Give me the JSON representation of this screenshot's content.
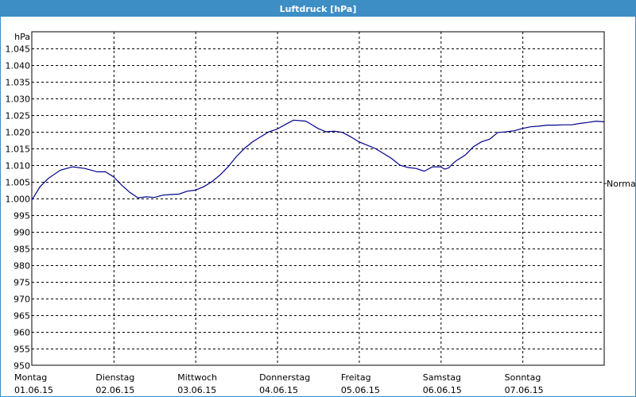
{
  "window": {
    "title": "Luftdruck [hPa]"
  },
  "chart_data": {
    "type": "line",
    "title": "Luftdruck [hPa]",
    "ylabel": "hPa",
    "xlabel": "",
    "ylim": [
      950,
      1050
    ],
    "xlim": [
      0,
      7
    ],
    "grid": true,
    "y_ticks": [
      950,
      955,
      960,
      965,
      970,
      975,
      980,
      985,
      990,
      995,
      1000,
      1005,
      1010,
      1015,
      1020,
      1025,
      1030,
      1035,
      1040,
      1045
    ],
    "y_tick_labels": [
      "950",
      "955",
      "960",
      "965",
      "970",
      "975",
      "980",
      "985",
      "990",
      "995",
      "1.000",
      "1.005",
      "1.010",
      "1.015",
      "1.020",
      "1.025",
      "1.030",
      "1.035",
      "1.040",
      "1.045"
    ],
    "categories": [
      {
        "day": "Montag",
        "date": "01.06.15"
      },
      {
        "day": "Dienstag",
        "date": "02.06.15"
      },
      {
        "day": "Mittwoch",
        "date": "03.06.15"
      },
      {
        "day": "Donnerstag",
        "date": "04.06.15"
      },
      {
        "day": "Freitag",
        "date": "05.06.15"
      },
      {
        "day": "Samstag",
        "date": "06.06.15"
      },
      {
        "day": "Sonntag",
        "date": "07.06.15"
      }
    ],
    "reference": {
      "label": "Normal",
      "value": 1004.5
    },
    "line_color": "#00008b",
    "series": [
      {
        "x": [
          0,
          0.1,
          0.2,
          0.35,
          0.5,
          0.65,
          0.8,
          0.9,
          1.0,
          1.1,
          1.2,
          1.3,
          1.4,
          1.5,
          1.6,
          1.7,
          1.8,
          1.9,
          2.0,
          2.1,
          2.2,
          2.3,
          2.4,
          2.5,
          2.6,
          2.7,
          2.8,
          2.9,
          3.0,
          3.1,
          3.2,
          3.3,
          3.35,
          3.4,
          3.5,
          3.6,
          3.7,
          3.8,
          3.9,
          4.0,
          4.1,
          4.2,
          4.3,
          4.4,
          4.5,
          4.6,
          4.7,
          4.8,
          4.9,
          5.0,
          5.05,
          5.1,
          5.15,
          5.2,
          5.3,
          5.4,
          5.5,
          5.6,
          5.7,
          5.8,
          5.9,
          6.0,
          6.1,
          6.2,
          6.3,
          6.4,
          6.5,
          6.6,
          6.7,
          6.8,
          6.9,
          7.0
        ],
        "values": [
          999.5,
          1003.5,
          1006,
          1008.5,
          1009.5,
          1009,
          1008,
          1008,
          1006.5,
          1004,
          1001.8,
          1000.2,
          1000.5,
          1000.3,
          1001,
          1001.2,
          1001.3,
          1002.2,
          1002.5,
          1003.5,
          1005,
          1007,
          1009.5,
          1012.5,
          1015,
          1017,
          1018.5,
          1020,
          1020.8,
          1022.2,
          1023.5,
          1023.3,
          1023.2,
          1022.5,
          1021,
          1020,
          1020.2,
          1019.8,
          1018.5,
          1017,
          1016,
          1015,
          1013.5,
          1012,
          1010,
          1009.3,
          1009,
          1008.2,
          1009.5,
          1009.5,
          1008.8,
          1009.2,
          1010.5,
          1011.5,
          1013,
          1015.5,
          1017,
          1017.8,
          1019.8,
          1020,
          1020.3,
          1021,
          1021.5,
          1021.7,
          1022,
          1022,
          1022.1,
          1022.1,
          1022.5,
          1022.8,
          1023.2,
          1023
        ]
      }
    ]
  }
}
